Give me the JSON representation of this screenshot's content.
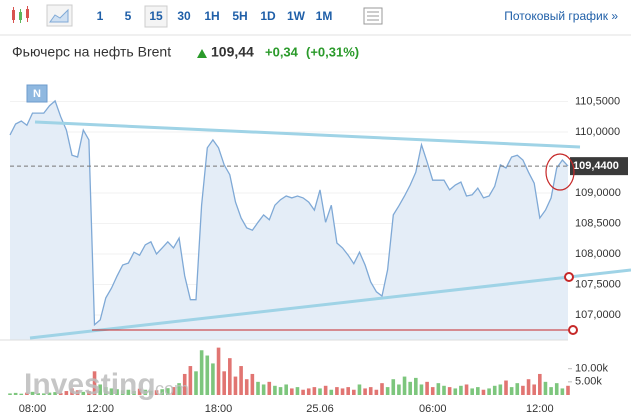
{
  "toolbar": {
    "intervals": [
      "1",
      "5",
      "15",
      "30",
      "1H",
      "5H",
      "1D",
      "1W",
      "1M"
    ],
    "selected_index": 2,
    "stream_link": "Потоковый график »"
  },
  "header": {
    "instrument": "Фьючерс на нефть Brent",
    "price": "109,44",
    "change": "+0,34",
    "change_pct": "(+0,31%)"
  },
  "chart_data": {
    "type": "area",
    "badge": "N",
    "categories": [
      null,
      null,
      null,
      null,
      "08:00",
      null,
      null,
      null,
      null,
      null,
      null,
      null,
      null,
      null,
      null,
      null,
      "12:00",
      null,
      null,
      null,
      null,
      null,
      null,
      null,
      null,
      null,
      null,
      null,
      null,
      null,
      null,
      null,
      null,
      null,
      null,
      null,
      null,
      "18:00",
      null,
      null,
      null,
      null,
      null,
      null,
      null,
      null,
      null,
      null,
      null,
      null,
      null,
      null,
      null,
      null,
      null,
      "25.06",
      null,
      null,
      null,
      null,
      null,
      null,
      null,
      null,
      null,
      null,
      null,
      null,
      null,
      null,
      null,
      null,
      null,
      null,
      null,
      "06:00",
      null,
      null,
      null,
      null,
      null,
      null,
      null,
      null,
      null,
      null,
      null,
      null,
      null,
      null,
      null,
      null,
      null,
      null,
      "12:00",
      null,
      null,
      null,
      null,
      null
    ],
    "series": [
      {
        "name": "Brent",
        "color": "#7fa9d6",
        "fill": "#e4edf7",
        "values": [
          109.95,
          110.13,
          110.18,
          110.11,
          110.31,
          110.31,
          110.31,
          110.43,
          110.51,
          110.25,
          110.03,
          109.62,
          109.59,
          110.03,
          109.87,
          106.84,
          106.92,
          107.28,
          107.44,
          107.64,
          107.82,
          107.85,
          108.03,
          107.98,
          108.15,
          108.2,
          108.0,
          108.1,
          108.2,
          108.1,
          108.26,
          107.64,
          107.25,
          107.25,
          108.8,
          109.74,
          109.87,
          109.74,
          109.46,
          109.3,
          108.85,
          108.59,
          108.43,
          108.39,
          108.52,
          108.64,
          108.56,
          108.8,
          108.89,
          108.95,
          108.92,
          108.95,
          108.92,
          108.85,
          108.72,
          109.05,
          108.52,
          108.8,
          108.18,
          108.1,
          107.98,
          107.84,
          108.03,
          107.82,
          107.54,
          107.38,
          107.31,
          107.74,
          108.64,
          108.79,
          108.95,
          109.13,
          109.34,
          109.79,
          109.51,
          109.21,
          109.21,
          109.21,
          109.05,
          109.13,
          109.18,
          108.95,
          108.97,
          109.08,
          108.92,
          108.95,
          109.11,
          109.46,
          109.41,
          109.59,
          109.62,
          109.54,
          109.34,
          109.16,
          108.59,
          108.72,
          108.92,
          109.41,
          109.54,
          109.44
        ]
      }
    ],
    "ylim": [
      106.59,
      110.77
    ],
    "yticks": [
      {
        "value": 107,
        "label": "107,0000"
      },
      {
        "value": 107.5,
        "label": "107,5000"
      },
      {
        "value": 108,
        "label": "108,0000"
      },
      {
        "value": 108.5,
        "label": "108,5000"
      },
      {
        "value": 109,
        "label": "109,0000"
      },
      {
        "value": 110,
        "label": "110,0000"
      },
      {
        "value": 110.5,
        "label": "110,5000"
      }
    ],
    "last_price": {
      "value": 109.44,
      "label": "109,4400"
    },
    "volume": {
      "up_color": "#5cb85c",
      "down_color": "#d9534f",
      "ylim": [
        0,
        19000
      ],
      "yticks": [
        {
          "value": 10000,
          "label": "10.00k"
        },
        {
          "value": 5000,
          "label": "5.00k"
        }
      ],
      "values": [
        600,
        800,
        500,
        900,
        1200,
        700,
        600,
        900,
        1100,
        800,
        1500,
        2500,
        1800,
        1200,
        1500,
        9000,
        4000,
        3000,
        2500,
        2200,
        1800,
        2000,
        1500,
        2400,
        2000,
        1600,
        1800,
        2200,
        2600,
        3000,
        4500,
        8000,
        11000,
        9000,
        17000,
        15000,
        12000,
        18000,
        9000,
        14000,
        7000,
        11000,
        6000,
        8000,
        5000,
        4000,
        5000,
        3500,
        3000,
        4000,
        2500,
        3000,
        2000,
        2500,
        3000,
        2500,
        3500,
        2000,
        3000,
        2500,
        3000,
        2000,
        4000,
        2500,
        3000,
        2000,
        4500,
        3000,
        6000,
        4000,
        7000,
        5000,
        6500,
        4000,
        5000,
        3000,
        4500,
        3500,
        3000,
        2500,
        3500,
        4000,
        2500,
        3000,
        2000,
        2500,
        3500,
        4000,
        5500,
        3000,
        4500,
        3500,
        6000,
        4000,
        8000,
        5000,
        3000,
        4500,
        2500,
        3500
      ]
    }
  }
}
